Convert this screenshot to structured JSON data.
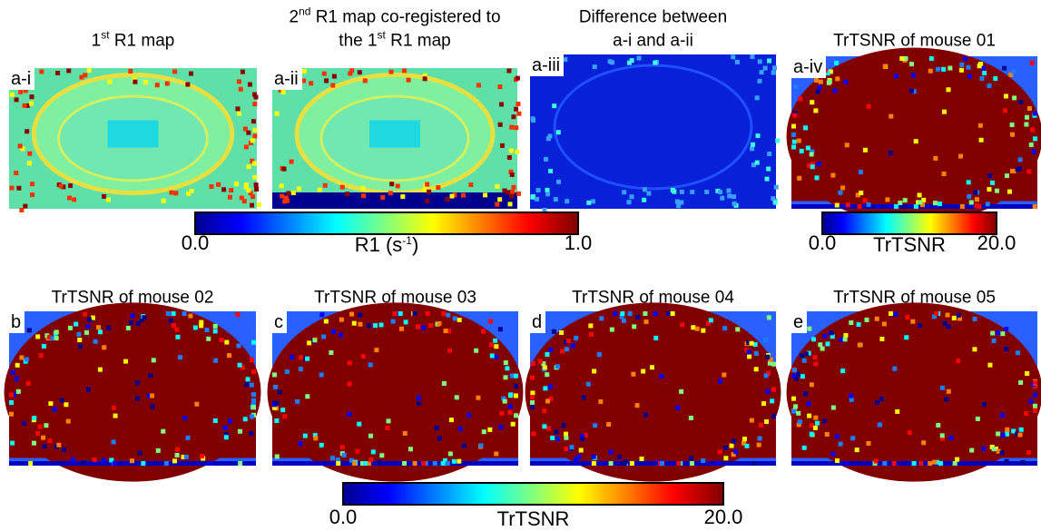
{
  "panels": [
    {
      "title": [
        [
          {
            "text": "1"
          },
          {
            "sup": "st"
          },
          {
            "text": " R1 map"
          }
        ]
      ],
      "label": "a-i"
    },
    {
      "title": [
        [
          {
            "text": "2"
          },
          {
            "sup": "nd"
          },
          {
            "text": " R1 map co-registered to"
          }
        ],
        [
          {
            "text": "the 1"
          },
          {
            "sup": "st"
          },
          {
            "text": " R1 map"
          }
        ]
      ],
      "label": "a-ii"
    },
    {
      "title": [
        [
          {
            "text": "Difference between"
          }
        ],
        [
          {
            "text": "a-i and a-ii"
          }
        ]
      ],
      "label": "a-iii"
    },
    {
      "title": [
        [
          {
            "text": "TrTSNR of mouse 01"
          }
        ]
      ],
      "label": "a-iv"
    },
    {
      "title": [
        [
          {
            "text": "TrTSNR of mouse 02"
          }
        ]
      ],
      "label": "b"
    },
    {
      "title": [
        [
          {
            "text": "TrTSNR of mouse 03"
          }
        ]
      ],
      "label": "c"
    },
    {
      "title": [
        [
          {
            "text": "TrTSNR of mouse 04"
          }
        ]
      ],
      "label": "d"
    },
    {
      "title": [
        [
          {
            "text": "TrTSNR of mouse 05"
          }
        ]
      ],
      "label": "e"
    }
  ],
  "colorbars": [
    {
      "min": "0.0",
      "max": "1.0",
      "title": [
        {
          "text": "R1 (s"
        },
        {
          "sup": "-1"
        },
        {
          "text": ")"
        }
      ]
    },
    {
      "min": "0.0",
      "max": "20.0",
      "title": [
        {
          "text": "TrTSNR"
        }
      ]
    },
    {
      "min": "0.0",
      "max": "20.0",
      "title": [
        {
          "text": "TrTSNR"
        }
      ]
    }
  ]
}
